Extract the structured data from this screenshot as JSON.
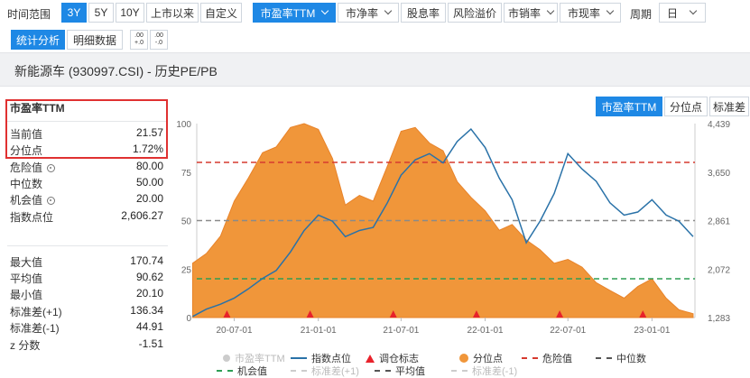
{
  "toolbar": {
    "range_label": "时间范围",
    "ranges": [
      "3Y",
      "5Y",
      "10Y",
      "上市以来",
      "自定义"
    ],
    "active_range": "3Y",
    "metrics": [
      "市盈率TTM",
      "市净率",
      "股息率",
      "风险溢价",
      "市销率",
      "市现率"
    ],
    "period_label": "周期",
    "period_value": "日"
  },
  "subtoolbar": {
    "tabs": [
      "统计分析",
      "明细数据"
    ],
    "decimal_inc_icon": ".00 +.0",
    "decimal_dec_icon": ".00 -.0"
  },
  "title": "新能源车 (930997.CSI) - 历史PE/PB",
  "stats": {
    "heading": "市盈率TTM",
    "current_label": "当前值",
    "current_value": "21.57",
    "percentile_label": "分位点",
    "percentile_value": "1.72%",
    "danger_label": "危险值",
    "danger_value": "80.00",
    "median_label": "中位数",
    "median_value": "50.00",
    "opportunity_label": "机会值",
    "opportunity_value": "20.00",
    "index_label": "指数点位",
    "index_value": "2,606.27",
    "max_label": "最大值",
    "max_value": "170.74",
    "mean_label": "平均值",
    "mean_value": "90.62",
    "min_label": "最小值",
    "min_value": "20.10",
    "sd_plus_label": "标准差(+1)",
    "sd_plus_value": "136.34",
    "sd_minus_label": "标准差(-1)",
    "sd_minus_value": "44.91",
    "z_label": "z 分数",
    "z_value": "-1.51"
  },
  "chart_tabs": [
    "市盈率TTM",
    "分位点",
    "标准差"
  ],
  "legend": [
    "市盈率TTM",
    "指数点位",
    "调仓标志",
    "分位点",
    "危险值",
    "中位数",
    "机会值",
    "标准差(+1)",
    "平均值",
    "标准差(-1)"
  ],
  "colors": {
    "accent": "#1e88e5",
    "percentile_fill": "#f0963a",
    "index_line": "#2a72a8",
    "danger": "#d63a2f",
    "median": "#8a8a8a",
    "opportunity": "#2e9e55",
    "rebalance": "#e8222b",
    "highlight": "#e03131"
  },
  "chart_data": {
    "type": "area",
    "x_ticks": [
      "20-07-01",
      "21-01-01",
      "21-07-01",
      "22-01-01",
      "22-07-01",
      "23-01-01"
    ],
    "y_left_ticks": [
      "0",
      "25",
      "50",
      "75",
      "100"
    ],
    "y_right_ticks": [
      "1,283",
      "2,072",
      "2,861",
      "3,650",
      "4,439"
    ],
    "ylim_left": [
      0,
      100
    ],
    "ylim_right": [
      1283,
      4439
    ],
    "reference_lines": {
      "danger": 80,
      "median": 50,
      "opportunity": 20
    },
    "percentile_series": {
      "name": "分位点",
      "x": [
        "20-04",
        "20-05",
        "20-06",
        "20-07",
        "20-08",
        "20-09",
        "20-10",
        "20-11",
        "20-12",
        "21-01",
        "21-02",
        "21-03",
        "21-04",
        "21-05",
        "21-06",
        "21-07",
        "21-08",
        "21-09",
        "21-10",
        "21-11",
        "21-12",
        "22-01",
        "22-02",
        "22-03",
        "22-04",
        "22-05",
        "22-06",
        "22-07",
        "22-08",
        "22-09",
        "22-10",
        "22-11",
        "22-12",
        "23-01",
        "23-02",
        "23-03",
        "23-04"
      ],
      "values": [
        28,
        33,
        42,
        60,
        72,
        85,
        88,
        98,
        100,
        97,
        82,
        58,
        63,
        60,
        78,
        96,
        98,
        90,
        86,
        70,
        62,
        55,
        45,
        48,
        40,
        35,
        28,
        30,
        26,
        18,
        14,
        10,
        16,
        20,
        10,
        4,
        2
      ]
    },
    "index_series": {
      "name": "指数点位",
      "x": [
        "20-04",
        "20-05",
        "20-06",
        "20-07",
        "20-08",
        "20-09",
        "20-10",
        "20-11",
        "20-12",
        "21-01",
        "21-02",
        "21-03",
        "21-04",
        "21-05",
        "21-06",
        "21-07",
        "21-08",
        "21-09",
        "21-10",
        "21-11",
        "21-12",
        "22-01",
        "22-02",
        "22-03",
        "22-04",
        "22-05",
        "22-06",
        "22-07",
        "22-08",
        "22-09",
        "22-10",
        "22-11",
        "22-12",
        "23-01",
        "23-02",
        "23-03",
        "23-04"
      ],
      "values": [
        1300,
        1420,
        1500,
        1600,
        1750,
        1920,
        2050,
        2350,
        2700,
        2950,
        2850,
        2600,
        2700,
        2750,
        3150,
        3600,
        3850,
        3950,
        3800,
        4150,
        4350,
        4050,
        3550,
        3200,
        2500,
        2850,
        3300,
        3950,
        3700,
        3500,
        3150,
        2950,
        3000,
        3200,
        2950,
        2850,
        2600
      ]
    },
    "rebalance_markers": [
      "20-06-15",
      "20-12-14",
      "21-06-14",
      "21-12-13",
      "22-06-13",
      "22-12-12"
    ]
  }
}
